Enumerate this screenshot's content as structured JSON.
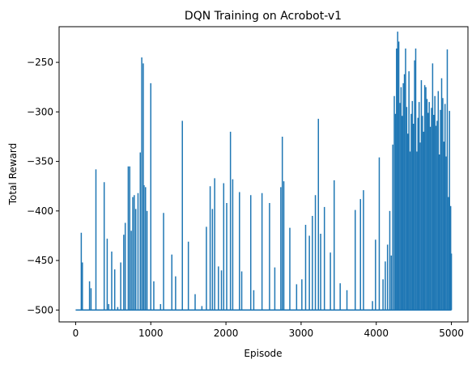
{
  "chart_data": {
    "type": "line",
    "title": "DQN Training on Acrobot-v1",
    "xlabel": "Episode",
    "ylabel": "Total Reward",
    "xlim": [
      -220,
      5220
    ],
    "ylim": [
      -512,
      -214
    ],
    "xticks": [
      0,
      1000,
      2000,
      3000,
      4000,
      5000
    ],
    "xtick_labels": [
      "0",
      "1000",
      "2000",
      "3000",
      "4000",
      "5000"
    ],
    "yticks": [
      -500,
      -450,
      -400,
      -350,
      -300,
      -250
    ],
    "ytick_labels": [
      "−500",
      "−450",
      "−400",
      "−350",
      "−300",
      "−250"
    ],
    "grid": false,
    "series": [
      {
        "color": "#1f77b4",
        "baseline": -500,
        "spikes": [
          [
            75,
            -422
          ],
          [
            90,
            -452
          ],
          [
            185,
            -471
          ],
          [
            205,
            -478
          ],
          [
            270,
            -358
          ],
          [
            380,
            -371
          ],
          [
            420,
            -428
          ],
          [
            440,
            -494
          ],
          [
            480,
            -441
          ],
          [
            520,
            -459
          ],
          [
            560,
            -497
          ],
          [
            600,
            -452
          ],
          [
            640,
            -424
          ],
          [
            660,
            -412
          ],
          [
            700,
            -355
          ],
          [
            720,
            -355
          ],
          [
            740,
            -420
          ],
          [
            760,
            -386
          ],
          [
            780,
            -384
          ],
          [
            800,
            -398
          ],
          [
            830,
            -382
          ],
          [
            860,
            -341
          ],
          [
            880,
            -245
          ],
          [
            900,
            -251
          ],
          [
            910,
            -374
          ],
          [
            930,
            -376
          ],
          [
            950,
            -400
          ],
          [
            1000,
            -271
          ],
          [
            1040,
            -471
          ],
          [
            1130,
            -494
          ],
          [
            1170,
            -402
          ],
          [
            1280,
            -444
          ],
          [
            1330,
            -466
          ],
          [
            1420,
            -309
          ],
          [
            1500,
            -431
          ],
          [
            1590,
            -484
          ],
          [
            1680,
            -496
          ],
          [
            1740,
            -416
          ],
          [
            1790,
            -375
          ],
          [
            1820,
            -398
          ],
          [
            1850,
            -367
          ],
          [
            1900,
            -456
          ],
          [
            1940,
            -460
          ],
          [
            1970,
            -372
          ],
          [
            2010,
            -392
          ],
          [
            2060,
            -320
          ],
          [
            2090,
            -368
          ],
          [
            2180,
            -381
          ],
          [
            2210,
            -461
          ],
          [
            2330,
            -384
          ],
          [
            2370,
            -480
          ],
          [
            2480,
            -382
          ],
          [
            2580,
            -392
          ],
          [
            2650,
            -457
          ],
          [
            2730,
            -376
          ],
          [
            2750,
            -325
          ],
          [
            2770,
            -370
          ],
          [
            2850,
            -417
          ],
          [
            2940,
            -474
          ],
          [
            3010,
            -469
          ],
          [
            3060,
            -414
          ],
          [
            3110,
            -425
          ],
          [
            3150,
            -405
          ],
          [
            3190,
            -384
          ],
          [
            3230,
            -307
          ],
          [
            3260,
            -423
          ],
          [
            3310,
            -396
          ],
          [
            3390,
            -442
          ],
          [
            3440,
            -369
          ],
          [
            3520,
            -473
          ],
          [
            3610,
            -480
          ],
          [
            3720,
            -399
          ],
          [
            3790,
            -388
          ],
          [
            3830,
            -379
          ],
          [
            3950,
            -491
          ],
          [
            3990,
            -429
          ],
          [
            4040,
            -346
          ],
          [
            4090,
            -469
          ],
          [
            4120,
            -451
          ],
          [
            4150,
            -434
          ],
          [
            4180,
            -400
          ],
          [
            4200,
            -445
          ],
          [
            4220,
            -333
          ],
          [
            4240,
            -284
          ],
          [
            4255,
            -302
          ],
          [
            4270,
            -236
          ],
          [
            4285,
            -219
          ],
          [
            4300,
            -229
          ],
          [
            4315,
            -291
          ],
          [
            4330,
            -275
          ],
          [
            4345,
            -304
          ],
          [
            4360,
            -271
          ],
          [
            4375,
            -262
          ],
          [
            4390,
            -236
          ],
          [
            4405,
            -295
          ],
          [
            4420,
            -322
          ],
          [
            4435,
            -259
          ],
          [
            4450,
            -340
          ],
          [
            4465,
            -302
          ],
          [
            4480,
            -289
          ],
          [
            4495,
            -312
          ],
          [
            4510,
            -248
          ],
          [
            4525,
            -236
          ],
          [
            4540,
            -340
          ],
          [
            4555,
            -306
          ],
          [
            4570,
            -290
          ],
          [
            4585,
            -331
          ],
          [
            4600,
            -268
          ],
          [
            4615,
            -304
          ],
          [
            4630,
            -320
          ],
          [
            4645,
            -273
          ],
          [
            4660,
            -275
          ],
          [
            4675,
            -287
          ],
          [
            4690,
            -301
          ],
          [
            4705,
            -290
          ],
          [
            4720,
            -315
          ],
          [
            4735,
            -296
          ],
          [
            4750,
            -251
          ],
          [
            4765,
            -303
          ],
          [
            4780,
            -284
          ],
          [
            4795,
            -314
          ],
          [
            4810,
            -309
          ],
          [
            4825,
            -279
          ],
          [
            4840,
            -343
          ],
          [
            4855,
            -298
          ],
          [
            4870,
            -266
          ],
          [
            4885,
            -286
          ],
          [
            4900,
            -330
          ],
          [
            4915,
            -292
          ],
          [
            4930,
            -345
          ],
          [
            4945,
            -237
          ],
          [
            4960,
            -386
          ],
          [
            4975,
            -299
          ],
          [
            4990,
            -395
          ],
          [
            5000,
            -443
          ]
        ]
      }
    ]
  }
}
